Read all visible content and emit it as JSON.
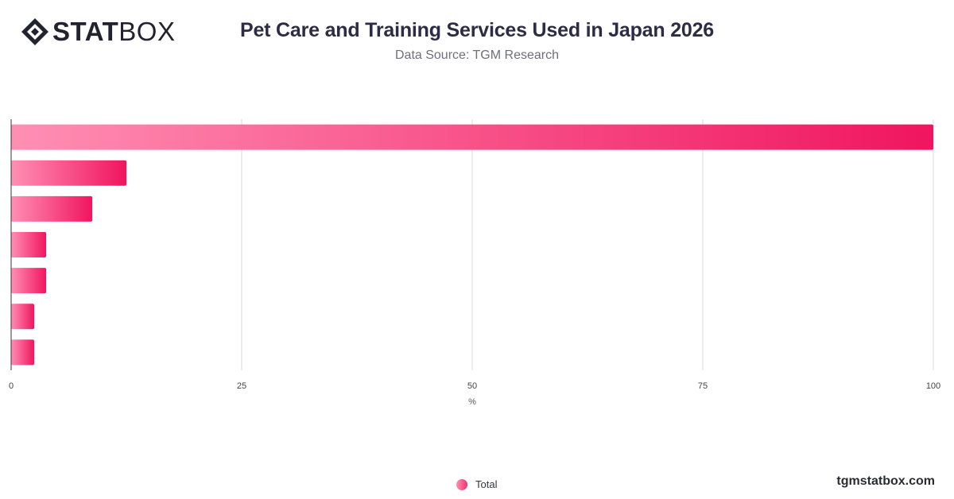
{
  "logo": {
    "strong": "STAT",
    "light": "BOX",
    "icon": "statbox-diamond-icon"
  },
  "header": {
    "title": "Pet Care and Training Services Used in Japan 2026",
    "subtitle": "Data Source: TGM Research"
  },
  "brand": "tgmstatbox.com",
  "colors": {
    "bar_start": "#ff8fb4",
    "bar_end": "#f0155f",
    "grid": "#d9d9d9",
    "axis": "#333333"
  },
  "chart_data": {
    "type": "bar",
    "orientation": "horizontal",
    "title": "Pet Care and Training Services Used in Japan 2026",
    "categories": [
      "",
      "",
      "",
      "",
      "",
      "",
      ""
    ],
    "series": [
      {
        "name": "Total",
        "values": [
          100,
          12.5,
          8.8,
          3.8,
          3.8,
          2.5,
          2.5
        ]
      }
    ],
    "xlabel": "%",
    "xlim": [
      0,
      100
    ],
    "xticks": [
      0,
      25,
      50,
      75,
      100
    ],
    "grid": true,
    "legend": "bottom-center"
  }
}
